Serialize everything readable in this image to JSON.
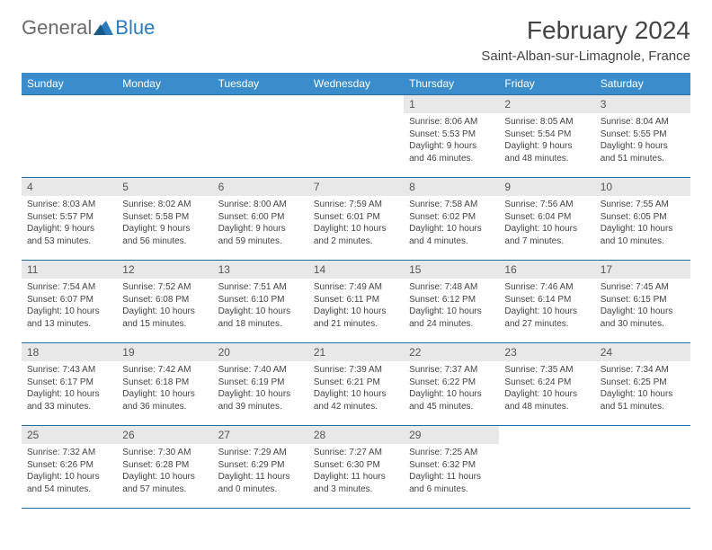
{
  "logo": {
    "general": "General",
    "blue": "Blue"
  },
  "title": "February 2024",
  "location": "Saint-Alban-sur-Limagnole, France",
  "colors": {
    "header_bg": "#3a8ccb",
    "border": "#2b6ca3",
    "daynum_bg": "#e8e8e8",
    "logo_gray": "#6a6a6a",
    "logo_blue": "#2b7bbd"
  },
  "weekdays": [
    "Sunday",
    "Monday",
    "Tuesday",
    "Wednesday",
    "Thursday",
    "Friday",
    "Saturday"
  ],
  "weeks": [
    [
      null,
      null,
      null,
      null,
      {
        "n": "1",
        "sunrise": "8:06 AM",
        "sunset": "5:53 PM",
        "daylight": "9 hours and 46 minutes."
      },
      {
        "n": "2",
        "sunrise": "8:05 AM",
        "sunset": "5:54 PM",
        "daylight": "9 hours and 48 minutes."
      },
      {
        "n": "3",
        "sunrise": "8:04 AM",
        "sunset": "5:55 PM",
        "daylight": "9 hours and 51 minutes."
      }
    ],
    [
      {
        "n": "4",
        "sunrise": "8:03 AM",
        "sunset": "5:57 PM",
        "daylight": "9 hours and 53 minutes."
      },
      {
        "n": "5",
        "sunrise": "8:02 AM",
        "sunset": "5:58 PM",
        "daylight": "9 hours and 56 minutes."
      },
      {
        "n": "6",
        "sunrise": "8:00 AM",
        "sunset": "6:00 PM",
        "daylight": "9 hours and 59 minutes."
      },
      {
        "n": "7",
        "sunrise": "7:59 AM",
        "sunset": "6:01 PM",
        "daylight": "10 hours and 2 minutes."
      },
      {
        "n": "8",
        "sunrise": "7:58 AM",
        "sunset": "6:02 PM",
        "daylight": "10 hours and 4 minutes."
      },
      {
        "n": "9",
        "sunrise": "7:56 AM",
        "sunset": "6:04 PM",
        "daylight": "10 hours and 7 minutes."
      },
      {
        "n": "10",
        "sunrise": "7:55 AM",
        "sunset": "6:05 PM",
        "daylight": "10 hours and 10 minutes."
      }
    ],
    [
      {
        "n": "11",
        "sunrise": "7:54 AM",
        "sunset": "6:07 PM",
        "daylight": "10 hours and 13 minutes."
      },
      {
        "n": "12",
        "sunrise": "7:52 AM",
        "sunset": "6:08 PM",
        "daylight": "10 hours and 15 minutes."
      },
      {
        "n": "13",
        "sunrise": "7:51 AM",
        "sunset": "6:10 PM",
        "daylight": "10 hours and 18 minutes."
      },
      {
        "n": "14",
        "sunrise": "7:49 AM",
        "sunset": "6:11 PM",
        "daylight": "10 hours and 21 minutes."
      },
      {
        "n": "15",
        "sunrise": "7:48 AM",
        "sunset": "6:12 PM",
        "daylight": "10 hours and 24 minutes."
      },
      {
        "n": "16",
        "sunrise": "7:46 AM",
        "sunset": "6:14 PM",
        "daylight": "10 hours and 27 minutes."
      },
      {
        "n": "17",
        "sunrise": "7:45 AM",
        "sunset": "6:15 PM",
        "daylight": "10 hours and 30 minutes."
      }
    ],
    [
      {
        "n": "18",
        "sunrise": "7:43 AM",
        "sunset": "6:17 PM",
        "daylight": "10 hours and 33 minutes."
      },
      {
        "n": "19",
        "sunrise": "7:42 AM",
        "sunset": "6:18 PM",
        "daylight": "10 hours and 36 minutes."
      },
      {
        "n": "20",
        "sunrise": "7:40 AM",
        "sunset": "6:19 PM",
        "daylight": "10 hours and 39 minutes."
      },
      {
        "n": "21",
        "sunrise": "7:39 AM",
        "sunset": "6:21 PM",
        "daylight": "10 hours and 42 minutes."
      },
      {
        "n": "22",
        "sunrise": "7:37 AM",
        "sunset": "6:22 PM",
        "daylight": "10 hours and 45 minutes."
      },
      {
        "n": "23",
        "sunrise": "7:35 AM",
        "sunset": "6:24 PM",
        "daylight": "10 hours and 48 minutes."
      },
      {
        "n": "24",
        "sunrise": "7:34 AM",
        "sunset": "6:25 PM",
        "daylight": "10 hours and 51 minutes."
      }
    ],
    [
      {
        "n": "25",
        "sunrise": "7:32 AM",
        "sunset": "6:26 PM",
        "daylight": "10 hours and 54 minutes."
      },
      {
        "n": "26",
        "sunrise": "7:30 AM",
        "sunset": "6:28 PM",
        "daylight": "10 hours and 57 minutes."
      },
      {
        "n": "27",
        "sunrise": "7:29 AM",
        "sunset": "6:29 PM",
        "daylight": "11 hours and 0 minutes."
      },
      {
        "n": "28",
        "sunrise": "7:27 AM",
        "sunset": "6:30 PM",
        "daylight": "11 hours and 3 minutes."
      },
      {
        "n": "29",
        "sunrise": "7:25 AM",
        "sunset": "6:32 PM",
        "daylight": "11 hours and 6 minutes."
      },
      null,
      null
    ]
  ]
}
